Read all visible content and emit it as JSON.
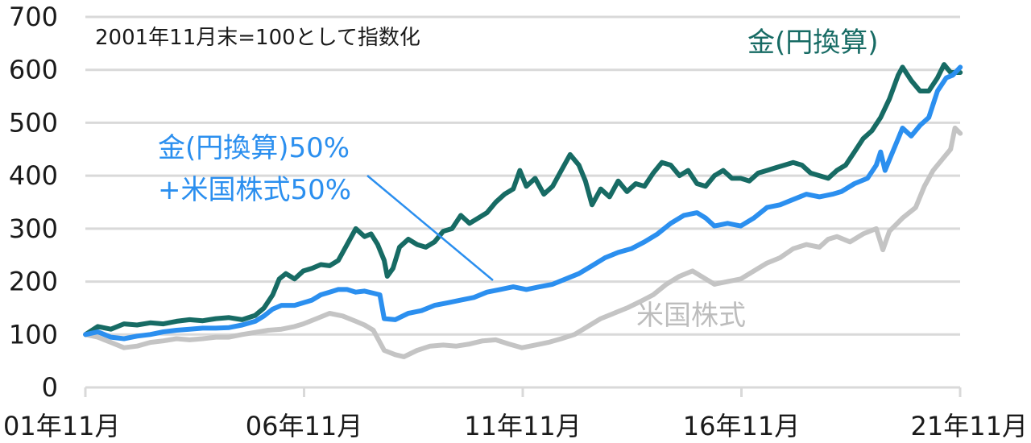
{
  "chart_data": {
    "type": "line",
    "title": "",
    "xlabel": "",
    "ylabel": "",
    "note": "2001年11月末=100として指数化",
    "ylim": [
      0,
      700
    ],
    "yticks": [
      0,
      100,
      200,
      300,
      400,
      500,
      600,
      700
    ],
    "xlim": [
      2001.917,
      2021.917
    ],
    "xticks": [
      {
        "x": 2001.917,
        "label": "01年11月"
      },
      {
        "x": 2006.917,
        "label": "06年11月"
      },
      {
        "x": 2011.917,
        "label": "11年11月"
      },
      {
        "x": 2016.917,
        "label": "16年11月"
      },
      {
        "x": 2021.917,
        "label": "21年11月"
      }
    ],
    "grid": "horizontal",
    "series": [
      {
        "name": "金(円換算)",
        "color": "#176b64",
        "points": [
          [
            2001.92,
            100
          ],
          [
            2002.2,
            115
          ],
          [
            2002.5,
            110
          ],
          [
            2002.8,
            120
          ],
          [
            2003.1,
            118
          ],
          [
            2003.4,
            122
          ],
          [
            2003.7,
            120
          ],
          [
            2004.0,
            125
          ],
          [
            2004.3,
            128
          ],
          [
            2004.6,
            126
          ],
          [
            2004.9,
            130
          ],
          [
            2005.2,
            132
          ],
          [
            2005.5,
            128
          ],
          [
            2005.8,
            136
          ],
          [
            2006.0,
            150
          ],
          [
            2006.2,
            175
          ],
          [
            2006.35,
            205
          ],
          [
            2006.5,
            215
          ],
          [
            2006.7,
            205
          ],
          [
            2006.9,
            220
          ],
          [
            2007.1,
            225
          ],
          [
            2007.3,
            232
          ],
          [
            2007.5,
            230
          ],
          [
            2007.7,
            240
          ],
          [
            2007.9,
            270
          ],
          [
            2008.1,
            300
          ],
          [
            2008.3,
            285
          ],
          [
            2008.45,
            290
          ],
          [
            2008.6,
            270
          ],
          [
            2008.75,
            240
          ],
          [
            2008.82,
            210
          ],
          [
            2008.95,
            225
          ],
          [
            2009.1,
            265
          ],
          [
            2009.3,
            280
          ],
          [
            2009.5,
            270
          ],
          [
            2009.7,
            265
          ],
          [
            2009.9,
            275
          ],
          [
            2010.1,
            295
          ],
          [
            2010.3,
            300
          ],
          [
            2010.5,
            325
          ],
          [
            2010.7,
            310
          ],
          [
            2010.9,
            320
          ],
          [
            2011.1,
            330
          ],
          [
            2011.3,
            350
          ],
          [
            2011.5,
            365
          ],
          [
            2011.7,
            375
          ],
          [
            2011.85,
            410
          ],
          [
            2012.0,
            380
          ],
          [
            2012.2,
            395
          ],
          [
            2012.4,
            365
          ],
          [
            2012.6,
            380
          ],
          [
            2012.8,
            410
          ],
          [
            2013.0,
            440
          ],
          [
            2013.2,
            420
          ],
          [
            2013.35,
            390
          ],
          [
            2013.5,
            345
          ],
          [
            2013.7,
            375
          ],
          [
            2013.9,
            360
          ],
          [
            2014.1,
            390
          ],
          [
            2014.3,
            370
          ],
          [
            2014.5,
            385
          ],
          [
            2014.7,
            380
          ],
          [
            2014.9,
            405
          ],
          [
            2015.1,
            425
          ],
          [
            2015.3,
            420
          ],
          [
            2015.5,
            400
          ],
          [
            2015.7,
            410
          ],
          [
            2015.9,
            385
          ],
          [
            2016.1,
            380
          ],
          [
            2016.3,
            400
          ],
          [
            2016.5,
            410
          ],
          [
            2016.7,
            395
          ],
          [
            2016.9,
            395
          ],
          [
            2017.1,
            390
          ],
          [
            2017.3,
            405
          ],
          [
            2017.5,
            410
          ],
          [
            2017.7,
            415
          ],
          [
            2017.9,
            420
          ],
          [
            2018.1,
            425
          ],
          [
            2018.3,
            420
          ],
          [
            2018.5,
            405
          ],
          [
            2018.7,
            400
          ],
          [
            2018.9,
            395
          ],
          [
            2019.1,
            410
          ],
          [
            2019.3,
            420
          ],
          [
            2019.5,
            445
          ],
          [
            2019.7,
            470
          ],
          [
            2019.9,
            485
          ],
          [
            2020.1,
            510
          ],
          [
            2020.3,
            545
          ],
          [
            2020.5,
            590
          ],
          [
            2020.6,
            605
          ],
          [
            2020.8,
            580
          ],
          [
            2021.0,
            560
          ],
          [
            2021.2,
            560
          ],
          [
            2021.4,
            585
          ],
          [
            2021.55,
            610
          ],
          [
            2021.7,
            595
          ],
          [
            2021.92,
            595
          ]
        ]
      },
      {
        "name": "金(円換算)50%\n+米国株式50%",
        "color": "#2b8fef",
        "points": [
          [
            2001.92,
            100
          ],
          [
            2002.2,
            105
          ],
          [
            2002.5,
            95
          ],
          [
            2002.8,
            92
          ],
          [
            2003.1,
            97
          ],
          [
            2003.4,
            100
          ],
          [
            2003.7,
            105
          ],
          [
            2004.0,
            108
          ],
          [
            2004.3,
            110
          ],
          [
            2004.6,
            112
          ],
          [
            2004.9,
            112
          ],
          [
            2005.2,
            113
          ],
          [
            2005.5,
            118
          ],
          [
            2005.8,
            125
          ],
          [
            2006.0,
            135
          ],
          [
            2006.2,
            148
          ],
          [
            2006.4,
            155
          ],
          [
            2006.7,
            155
          ],
          [
            2006.9,
            160
          ],
          [
            2007.1,
            165
          ],
          [
            2007.3,
            175
          ],
          [
            2007.5,
            180
          ],
          [
            2007.7,
            185
          ],
          [
            2007.9,
            185
          ],
          [
            2008.1,
            180
          ],
          [
            2008.3,
            182
          ],
          [
            2008.5,
            178
          ],
          [
            2008.65,
            175
          ],
          [
            2008.75,
            130
          ],
          [
            2009.0,
            128
          ],
          [
            2009.3,
            140
          ],
          [
            2009.6,
            145
          ],
          [
            2009.9,
            155
          ],
          [
            2010.2,
            160
          ],
          [
            2010.5,
            165
          ],
          [
            2010.8,
            170
          ],
          [
            2011.1,
            180
          ],
          [
            2011.4,
            185
          ],
          [
            2011.7,
            190
          ],
          [
            2012.0,
            185
          ],
          [
            2012.3,
            190
          ],
          [
            2012.6,
            195
          ],
          [
            2012.9,
            205
          ],
          [
            2013.2,
            215
          ],
          [
            2013.5,
            230
          ],
          [
            2013.8,
            245
          ],
          [
            2014.1,
            255
          ],
          [
            2014.4,
            262
          ],
          [
            2014.7,
            275
          ],
          [
            2015.0,
            290
          ],
          [
            2015.3,
            310
          ],
          [
            2015.6,
            325
          ],
          [
            2015.9,
            330
          ],
          [
            2016.1,
            320
          ],
          [
            2016.3,
            305
          ],
          [
            2016.6,
            310
          ],
          [
            2016.9,
            305
          ],
          [
            2017.2,
            320
          ],
          [
            2017.5,
            340
          ],
          [
            2017.8,
            345
          ],
          [
            2018.1,
            355
          ],
          [
            2018.4,
            365
          ],
          [
            2018.7,
            360
          ],
          [
            2019.0,
            365
          ],
          [
            2019.2,
            370
          ],
          [
            2019.5,
            385
          ],
          [
            2019.8,
            395
          ],
          [
            2020.0,
            420
          ],
          [
            2020.1,
            445
          ],
          [
            2020.2,
            410
          ],
          [
            2020.3,
            430
          ],
          [
            2020.5,
            470
          ],
          [
            2020.6,
            490
          ],
          [
            2020.8,
            475
          ],
          [
            2021.0,
            495
          ],
          [
            2021.2,
            510
          ],
          [
            2021.4,
            560
          ],
          [
            2021.6,
            585
          ],
          [
            2021.75,
            590
          ],
          [
            2021.92,
            605
          ]
        ]
      },
      {
        "name": "米国株式",
        "color": "#c4c4c4",
        "points": [
          [
            2001.92,
            100
          ],
          [
            2002.2,
            95
          ],
          [
            2002.5,
            85
          ],
          [
            2002.8,
            75
          ],
          [
            2003.1,
            78
          ],
          [
            2003.4,
            85
          ],
          [
            2003.7,
            88
          ],
          [
            2004.0,
            92
          ],
          [
            2004.3,
            90
          ],
          [
            2004.6,
            92
          ],
          [
            2004.9,
            95
          ],
          [
            2005.2,
            95
          ],
          [
            2005.5,
            100
          ],
          [
            2005.8,
            104
          ],
          [
            2006.1,
            108
          ],
          [
            2006.4,
            110
          ],
          [
            2006.7,
            115
          ],
          [
            2006.9,
            120
          ],
          [
            2007.2,
            130
          ],
          [
            2007.5,
            140
          ],
          [
            2007.8,
            135
          ],
          [
            2008.1,
            125
          ],
          [
            2008.3,
            118
          ],
          [
            2008.5,
            108
          ],
          [
            2008.75,
            70
          ],
          [
            2009.0,
            62
          ],
          [
            2009.2,
            58
          ],
          [
            2009.5,
            70
          ],
          [
            2009.8,
            78
          ],
          [
            2010.1,
            80
          ],
          [
            2010.4,
            78
          ],
          [
            2010.7,
            82
          ],
          [
            2011.0,
            88
          ],
          [
            2011.3,
            90
          ],
          [
            2011.6,
            82
          ],
          [
            2011.9,
            75
          ],
          [
            2012.2,
            80
          ],
          [
            2012.5,
            85
          ],
          [
            2012.8,
            92
          ],
          [
            2013.1,
            100
          ],
          [
            2013.4,
            115
          ],
          [
            2013.7,
            130
          ],
          [
            2014.0,
            140
          ],
          [
            2014.3,
            150
          ],
          [
            2014.6,
            162
          ],
          [
            2014.9,
            175
          ],
          [
            2015.2,
            195
          ],
          [
            2015.5,
            210
          ],
          [
            2015.8,
            220
          ],
          [
            2016.1,
            205
          ],
          [
            2016.3,
            195
          ],
          [
            2016.6,
            200
          ],
          [
            2016.9,
            205
          ],
          [
            2017.2,
            220
          ],
          [
            2017.5,
            235
          ],
          [
            2017.8,
            245
          ],
          [
            2018.1,
            262
          ],
          [
            2018.4,
            270
          ],
          [
            2018.7,
            265
          ],
          [
            2018.9,
            280
          ],
          [
            2019.1,
            285
          ],
          [
            2019.4,
            275
          ],
          [
            2019.7,
            290
          ],
          [
            2020.0,
            300
          ],
          [
            2020.15,
            260
          ],
          [
            2020.3,
            295
          ],
          [
            2020.6,
            320
          ],
          [
            2020.9,
            340
          ],
          [
            2021.1,
            380
          ],
          [
            2021.3,
            410
          ],
          [
            2021.5,
            430
          ],
          [
            2021.7,
            450
          ],
          [
            2021.8,
            490
          ],
          [
            2021.92,
            480
          ]
        ]
      }
    ],
    "annotations": [
      {
        "series": "金(円換算)",
        "text": "金(円換算)"
      },
      {
        "series": "米国株式",
        "text": "米国株式"
      },
      {
        "series": "金(円換算)50%\n+米国株式50%",
        "lines": [
          "金(円換算)50%",
          "+米国株式50%"
        ]
      }
    ]
  }
}
